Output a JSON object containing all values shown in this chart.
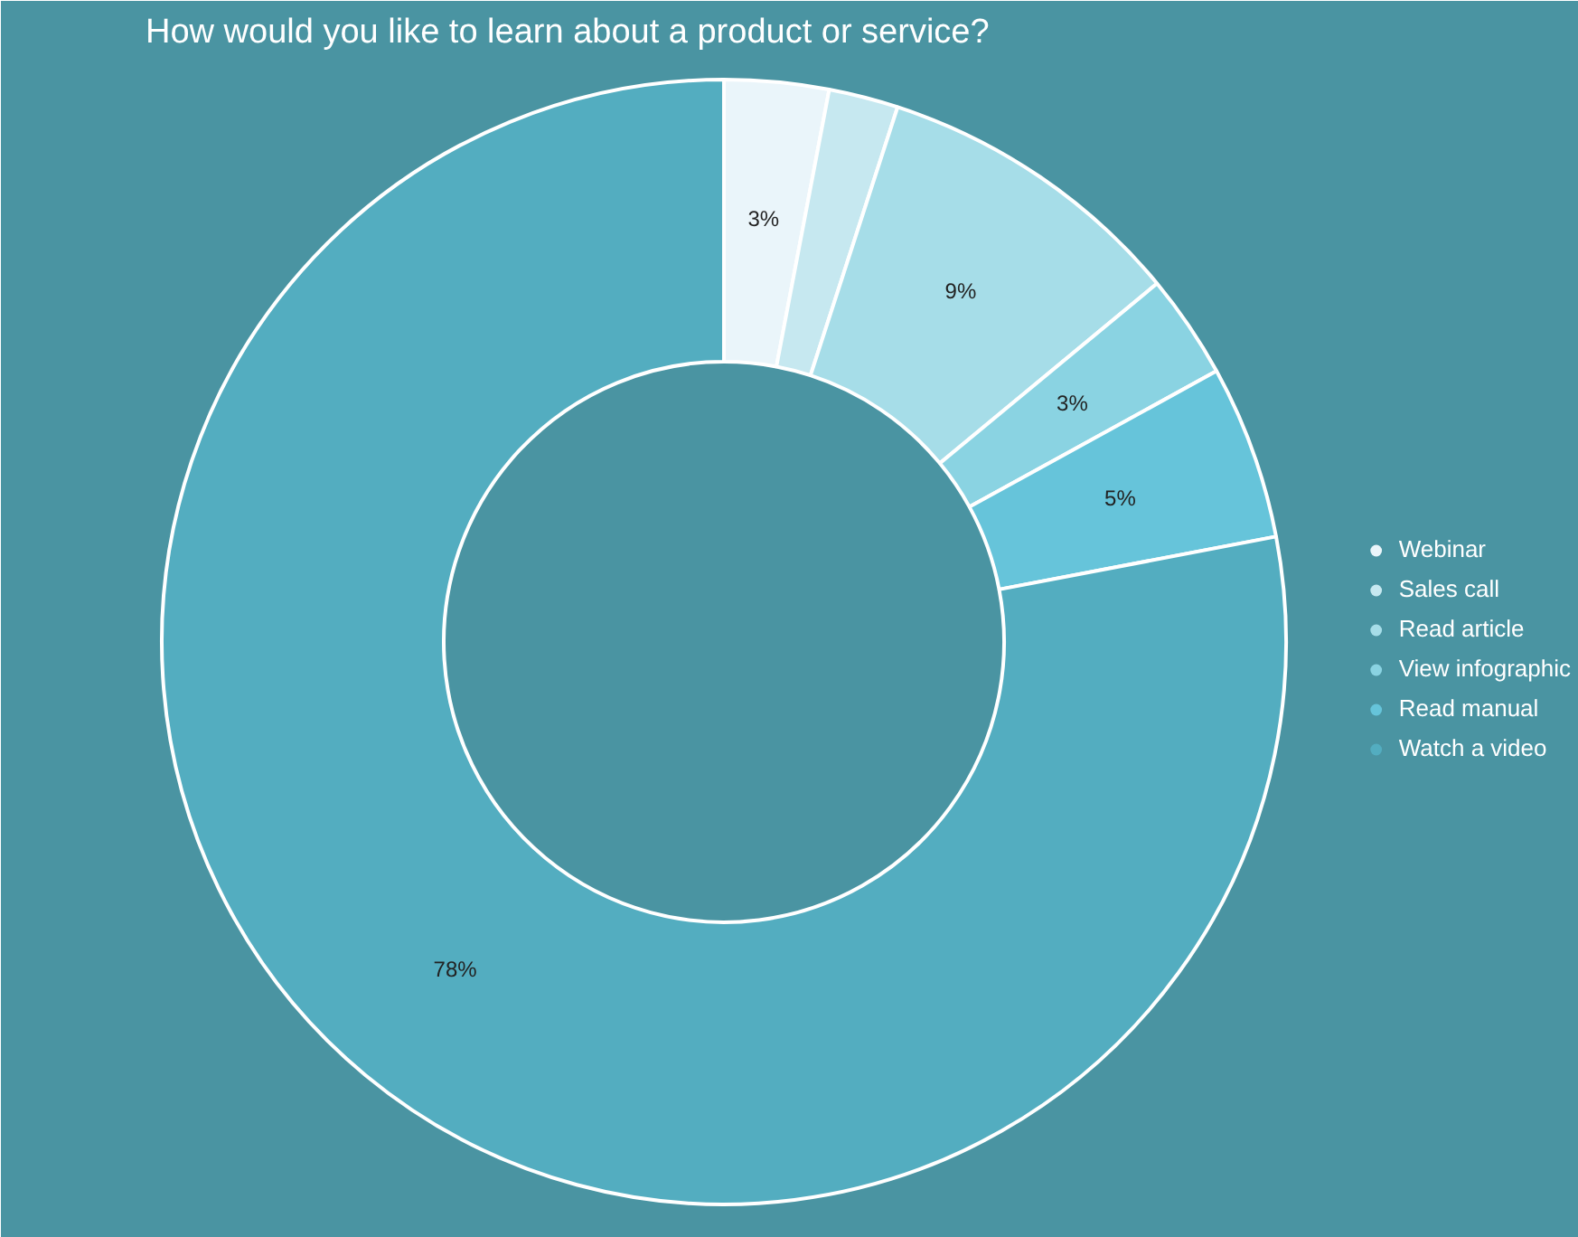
{
  "chart_data": {
    "type": "donut",
    "title": "How would you like to learn about a product or service?",
    "categories": [
      "Webinar",
      "Sales call",
      "Read article",
      "View infographic",
      "Read manual",
      "Watch a video"
    ],
    "values": [
      3,
      2,
      9,
      3,
      5,
      78
    ],
    "colors": [
      "#eaf5fa",
      "#c6e8f0",
      "#a6dde8",
      "#8ad3e2",
      "#66c4da",
      "#53adc0"
    ],
    "value_labels": [
      "3%",
      null,
      "9%",
      "3%",
      "5%",
      "78%"
    ],
    "legend": "right"
  }
}
